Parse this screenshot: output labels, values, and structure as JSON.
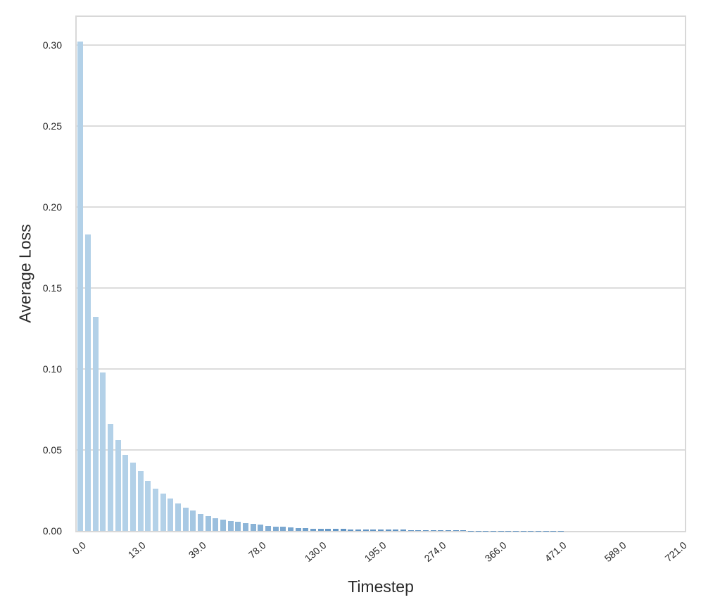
{
  "chart_data": {
    "type": "bar",
    "title": "",
    "xlabel": "Timestep",
    "ylabel": "Average Loss",
    "ylim": [
      0,
      0.3173
    ],
    "grid": "horizontal",
    "legend": "none",
    "y_ticks": [
      "0.00",
      "0.05",
      "0.10",
      "0.15",
      "0.20",
      "0.25",
      "0.30"
    ],
    "x_ticks": [
      {
        "index": 0,
        "label": "0.0"
      },
      {
        "index": 8,
        "label": "13.0"
      },
      {
        "index": 16,
        "label": "39.0"
      },
      {
        "index": 24,
        "label": "78.0"
      },
      {
        "index": 32,
        "label": "130.0"
      },
      {
        "index": 40,
        "label": "195.0"
      },
      {
        "index": 48,
        "label": "274.0"
      },
      {
        "index": 56,
        "label": "366.0"
      },
      {
        "index": 64,
        "label": "471.0"
      },
      {
        "index": 72,
        "label": "589.0"
      },
      {
        "index": 80,
        "label": "721.0"
      }
    ],
    "n_bars": 81,
    "values": [
      0.302,
      0.183,
      0.132,
      0.098,
      0.066,
      0.056,
      0.047,
      0.042,
      0.037,
      0.031,
      0.026,
      0.023,
      0.02,
      0.017,
      0.0145,
      0.0125,
      0.0105,
      0.0092,
      0.008,
      0.007,
      0.0062,
      0.0055,
      0.0048,
      0.0042,
      0.0037,
      0.0032,
      0.0028,
      0.0024,
      0.002,
      0.0017,
      0.0016,
      0.0015,
      0.0014,
      0.0013,
      0.0012,
      0.0011,
      0.001,
      0.001,
      0.0009,
      0.0009,
      0.0008,
      0.0008,
      0.0007,
      0.0007,
      0.0006,
      0.0005,
      0.0005,
      0.0004,
      0.0004,
      0.0003,
      0.0003,
      0.0003,
      0.0002,
      0.0002,
      0.0002,
      0.0002,
      0.0001,
      0.0001,
      0.0001,
      0.0001,
      0.0001,
      0.0001,
      0.0001,
      0.0001,
      0.0001,
      0.0,
      0.0,
      0.0,
      0.0,
      0.0,
      0.0,
      0.0,
      0.0,
      0.0,
      0.0,
      0.0,
      0.0,
      0.0,
      0.0,
      0.0,
      0.0
    ]
  },
  "style": {
    "bar_color_light": "#b3d1e8",
    "bar_color_dark": "#6094c4",
    "grid_color": "#dcdcdc",
    "spine_color": "#d8d8d8",
    "text_color": "#262626",
    "background": "#ffffff"
  }
}
